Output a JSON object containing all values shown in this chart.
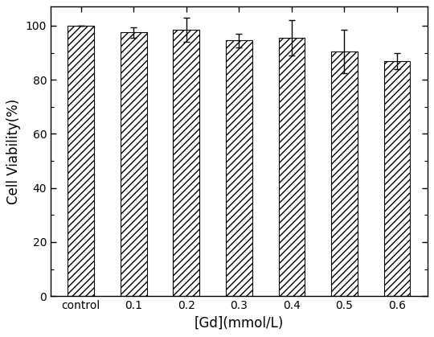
{
  "categories": [
    "control",
    "0.1",
    "0.2",
    "0.3",
    "0.4",
    "0.5",
    "0.6"
  ],
  "values": [
    100,
    97.5,
    98.5,
    94.5,
    95.5,
    90.5,
    87.0
  ],
  "errors": [
    0.0,
    2.0,
    4.5,
    2.5,
    6.5,
    8.0,
    3.0
  ],
  "xlabel": "[Gd](mmol/L)",
  "ylabel": "Cell Viability(%)",
  "ylim": [
    0,
    107
  ],
  "yticks": [
    0,
    20,
    40,
    60,
    80,
    100
  ],
  "bar_color": "#ffffff",
  "bar_edgecolor": "#000000",
  "hatch": "////",
  "bar_width": 0.5,
  "figsize": [
    5.4,
    4.19
  ],
  "dpi": 100,
  "xlabel_fontsize": 12,
  "ylabel_fontsize": 12,
  "tick_fontsize": 10,
  "capsize": 3
}
